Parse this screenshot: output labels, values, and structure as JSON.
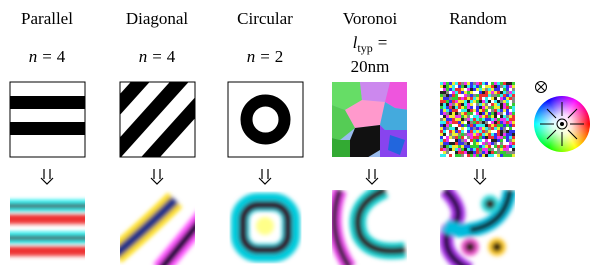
{
  "columns": [
    {
      "title": "Parallel",
      "param": {
        "symbol": "n",
        "relation": "=",
        "value": "4"
      }
    },
    {
      "title": "Diagonal",
      "param": {
        "symbol": "n",
        "relation": "=",
        "value": "4"
      }
    },
    {
      "title": "Circular",
      "param": {
        "symbol": "n",
        "relation": "=",
        "value": "2"
      }
    },
    {
      "title": "Voronoi",
      "param": {
        "symbol": "l",
        "subscript": "typ",
        "relation": "=",
        "value": "20nm"
      }
    },
    {
      "title": "Random"
    }
  ]
}
